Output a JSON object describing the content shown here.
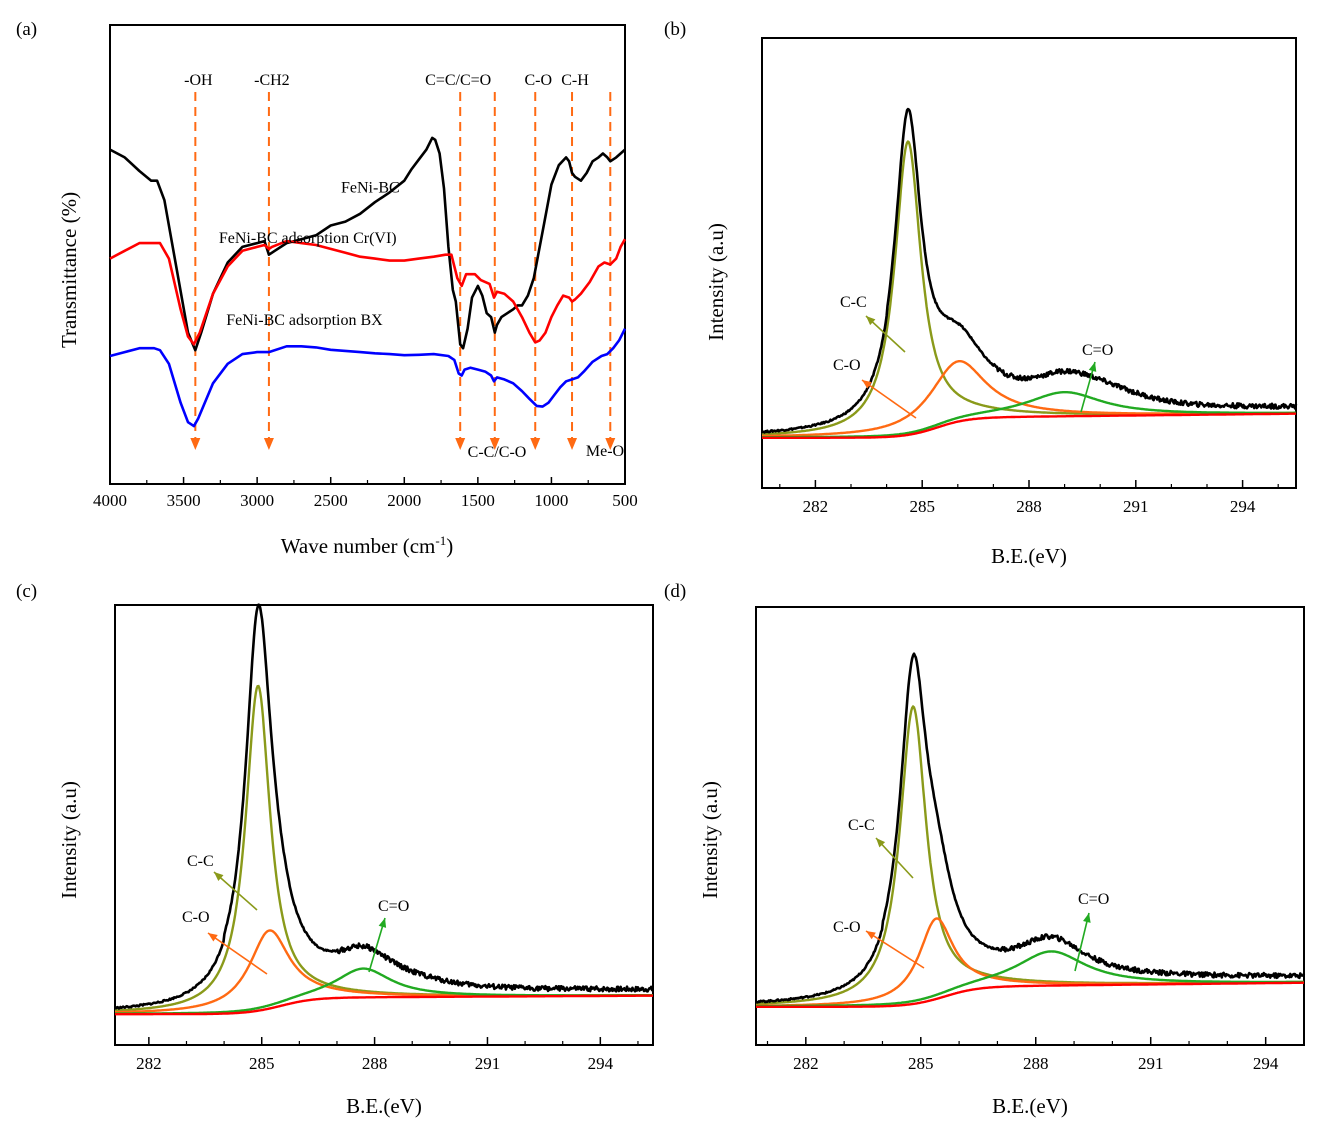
{
  "chart_data": [
    {
      "panel": "(a)",
      "type": "line",
      "xlabel": "Wave number (cm",
      "xlabel_sup": "-1",
      "xlabel_end": ")",
      "ylabel": "Transmittance (%)",
      "xlim": [
        4000,
        500
      ],
      "xticks": [
        4000,
        3500,
        3000,
        2500,
        2000,
        1500,
        1000,
        500
      ],
      "series": [
        {
          "name": "FeNi-BC",
          "color": "#000000",
          "points": [
            [
              4000,
              0.72
            ],
            [
              3900,
              0.7
            ],
            [
              3800,
              0.665
            ],
            [
              3720,
              0.64
            ],
            [
              3680,
              0.64
            ],
            [
              3630,
              0.59
            ],
            [
              3550,
              0.42
            ],
            [
              3470,
              0.25
            ],
            [
              3420,
              0.205
            ],
            [
              3380,
              0.25
            ],
            [
              3300,
              0.35
            ],
            [
              3200,
              0.43
            ],
            [
              3100,
              0.47
            ],
            [
              3000,
              0.48
            ],
            [
              2950,
              0.485
            ],
            [
              2920,
              0.45
            ],
            [
              2880,
              0.46
            ],
            [
              2800,
              0.48
            ],
            [
              2700,
              0.49
            ],
            [
              2600,
              0.5
            ],
            [
              2500,
              0.525
            ],
            [
              2400,
              0.535
            ],
            [
              2300,
              0.555
            ],
            [
              2200,
              0.585
            ],
            [
              2100,
              0.61
            ],
            [
              2000,
              0.64
            ],
            [
              1950,
              0.67
            ],
            [
              1900,
              0.695
            ],
            [
              1850,
              0.72
            ],
            [
              1810,
              0.75
            ],
            [
              1790,
              0.745
            ],
            [
              1760,
              0.71
            ],
            [
              1730,
              0.62
            ],
            [
              1700,
              0.47
            ],
            [
              1670,
              0.36
            ],
            [
              1650,
              0.33
            ],
            [
              1620,
              0.22
            ],
            [
              1600,
              0.21
            ],
            [
              1570,
              0.26
            ],
            [
              1540,
              0.34
            ],
            [
              1500,
              0.37
            ],
            [
              1470,
              0.345
            ],
            [
              1440,
              0.3
            ],
            [
              1410,
              0.29
            ],
            [
              1385,
              0.25
            ],
            [
              1370,
              0.27
            ],
            [
              1340,
              0.29
            ],
            [
              1300,
              0.3
            ],
            [
              1260,
              0.31
            ],
            [
              1230,
              0.32
            ],
            [
              1200,
              0.32
            ],
            [
              1160,
              0.345
            ],
            [
              1120,
              0.39
            ],
            [
              1090,
              0.45
            ],
            [
              1050,
              0.53
            ],
            [
              1000,
              0.63
            ],
            [
              950,
              0.68
            ],
            [
              900,
              0.7
            ],
            [
              880,
              0.69
            ],
            [
              860,
              0.66
            ],
            [
              840,
              0.65
            ],
            [
              800,
              0.64
            ],
            [
              760,
              0.66
            ],
            [
              720,
              0.69
            ],
            [
              680,
              0.7
            ],
            [
              650,
              0.71
            ],
            [
              620,
              0.7
            ],
            [
              600,
              0.69
            ],
            [
              560,
              0.7
            ],
            [
              530,
              0.71
            ],
            [
              500,
              0.72
            ]
          ]
        },
        {
          "name": "FeNi-BC adsorption Cr(VI)",
          "color": "#ff0000",
          "points": [
            [
              4000,
              0.44
            ],
            [
              3900,
              0.46
            ],
            [
              3800,
              0.48
            ],
            [
              3700,
              0.48
            ],
            [
              3660,
              0.48
            ],
            [
              3600,
              0.44
            ],
            [
              3520,
              0.31
            ],
            [
              3470,
              0.24
            ],
            [
              3430,
              0.22
            ],
            [
              3390,
              0.25
            ],
            [
              3300,
              0.35
            ],
            [
              3200,
              0.42
            ],
            [
              3100,
              0.46
            ],
            [
              3000,
              0.47
            ],
            [
              2950,
              0.475
            ],
            [
              2920,
              0.465
            ],
            [
              2900,
              0.47
            ],
            [
              2800,
              0.485
            ],
            [
              2700,
              0.48
            ],
            [
              2600,
              0.475
            ],
            [
              2500,
              0.465
            ],
            [
              2400,
              0.455
            ],
            [
              2300,
              0.445
            ],
            [
              2200,
              0.44
            ],
            [
              2100,
              0.435
            ],
            [
              2000,
              0.435
            ],
            [
              1900,
              0.44
            ],
            [
              1800,
              0.445
            ],
            [
              1720,
              0.45
            ],
            [
              1680,
              0.45
            ],
            [
              1640,
              0.39
            ],
            [
              1610,
              0.37
            ],
            [
              1580,
              0.4
            ],
            [
              1520,
              0.4
            ],
            [
              1480,
              0.385
            ],
            [
              1420,
              0.375
            ],
            [
              1390,
              0.34
            ],
            [
              1370,
              0.355
            ],
            [
              1320,
              0.35
            ],
            [
              1260,
              0.33
            ],
            [
              1200,
              0.29
            ],
            [
              1150,
              0.25
            ],
            [
              1110,
              0.225
            ],
            [
              1080,
              0.23
            ],
            [
              1040,
              0.25
            ],
            [
              1000,
              0.29
            ],
            [
              960,
              0.32
            ],
            [
              920,
              0.345
            ],
            [
              880,
              0.34
            ],
            [
              860,
              0.33
            ],
            [
              840,
              0.335
            ],
            [
              800,
              0.35
            ],
            [
              740,
              0.38
            ],
            [
              680,
              0.42
            ],
            [
              640,
              0.43
            ],
            [
              600,
              0.425
            ],
            [
              560,
              0.44
            ],
            [
              530,
              0.47
            ],
            [
              500,
              0.49
            ]
          ]
        },
        {
          "name": "FeNi-BC adsorption BX",
          "color": "#0000ff",
          "points": [
            [
              4000,
              0.19
            ],
            [
              3900,
              0.2
            ],
            [
              3800,
              0.21
            ],
            [
              3700,
              0.21
            ],
            [
              3660,
              0.205
            ],
            [
              3600,
              0.17
            ],
            [
              3520,
              0.07
            ],
            [
              3470,
              0.02
            ],
            [
              3430,
              0.01
            ],
            [
              3400,
              0.03
            ],
            [
              3300,
              0.12
            ],
            [
              3200,
              0.17
            ],
            [
              3100,
              0.195
            ],
            [
              3000,
              0.2
            ],
            [
              2920,
              0.2
            ],
            [
              2800,
              0.215
            ],
            [
              2700,
              0.215
            ],
            [
              2600,
              0.212
            ],
            [
              2500,
              0.206
            ],
            [
              2400,
              0.203
            ],
            [
              2300,
              0.2
            ],
            [
              2200,
              0.197
            ],
            [
              2100,
              0.195
            ],
            [
              2000,
              0.192
            ],
            [
              1900,
              0.193
            ],
            [
              1800,
              0.195
            ],
            [
              1700,
              0.19
            ],
            [
              1660,
              0.18
            ],
            [
              1630,
              0.145
            ],
            [
              1610,
              0.14
            ],
            [
              1590,
              0.155
            ],
            [
              1550,
              0.16
            ],
            [
              1500,
              0.155
            ],
            [
              1450,
              0.15
            ],
            [
              1410,
              0.14
            ],
            [
              1390,
              0.125
            ],
            [
              1370,
              0.135
            ],
            [
              1320,
              0.13
            ],
            [
              1260,
              0.12
            ],
            [
              1200,
              0.1
            ],
            [
              1150,
              0.08
            ],
            [
              1100,
              0.062
            ],
            [
              1060,
              0.06
            ],
            [
              1020,
              0.07
            ],
            [
              980,
              0.09
            ],
            [
              940,
              0.11
            ],
            [
              900,
              0.125
            ],
            [
              860,
              0.13
            ],
            [
              820,
              0.135
            ],
            [
              780,
              0.15
            ],
            [
              720,
              0.175
            ],
            [
              660,
              0.19
            ],
            [
              620,
              0.195
            ],
            [
              580,
              0.21
            ],
            [
              540,
              0.23
            ],
            [
              500,
              0.26
            ]
          ]
        }
      ],
      "series_labels": [
        {
          "text": "FeNi-BC",
          "x": 2430,
          "y": 0.61
        },
        {
          "text": "FeNi-BC adsorption Cr(VI)",
          "x": 3260,
          "y": 0.48
        },
        {
          "text": "FeNi-BC adsorption BX",
          "x": 3210,
          "y": 0.27
        }
      ],
      "markers": [
        {
          "x": 3420,
          "label": "-OH",
          "label_pos": "top"
        },
        {
          "x": 2920,
          "label": "-CH2",
          "label_pos": "top"
        },
        {
          "x": 1620,
          "label": "C=C/C=O",
          "label_pos": "top"
        },
        {
          "x": 1385,
          "label": "",
          "label_pos": "top"
        },
        {
          "x": 1110,
          "label": "C-O",
          "label_pos": "top"
        },
        {
          "x": 860,
          "label": "C-H",
          "label_pos": "top"
        },
        {
          "x": 600,
          "label": "",
          "label_pos": "top"
        }
      ],
      "bottom_labels": [
        "C-C/C-O",
        "Me-O"
      ],
      "marker_color": "#ff6a13"
    },
    {
      "panel": "(b)",
      "type": "line",
      "xlabel": "B.E.(eV)",
      "ylabel": "Intensity (a.u)",
      "xlim": [
        280.5,
        295.5
      ],
      "xticks": [
        282,
        285,
        288,
        291,
        294
      ],
      "components": [
        {
          "name": "C-C",
          "color": "#8a9a1a",
          "center": 284.6,
          "height": 0.73,
          "width": 0.45
        },
        {
          "name": "C-O",
          "color": "#ff6a13",
          "center": 286.0,
          "height": 0.15,
          "width": 0.95
        },
        {
          "name": "C=O",
          "color": "#22aa22",
          "center": 289.0,
          "height": 0.06,
          "width": 1.3
        }
      ],
      "background": {
        "color": "#ff0000",
        "step_center": 285.4,
        "step_low": 0.005,
        "step_high": 0.055,
        "end": 0.065
      },
      "envelope_color": "#000000",
      "envelope_hump": {
        "center": 290.0,
        "height": 0.025,
        "width": 1.5
      },
      "ylim": [
        -0.12,
        1.0
      ],
      "annotations": [
        {
          "text": "C-C",
          "color": "#8a9a1a"
        },
        {
          "text": "C-O",
          "color": "#ff6a13"
        },
        {
          "text": "C=O",
          "color": "#22aa22"
        }
      ]
    },
    {
      "panel": "(c)",
      "type": "line",
      "xlabel": "B.E.(eV)",
      "ylabel": "Intensity (a.u)",
      "xlim": [
        281.1,
        295.4
      ],
      "xticks": [
        282,
        285,
        288,
        291,
        294
      ],
      "components": [
        {
          "name": "C-C",
          "color": "#8a9a1a",
          "center": 284.9,
          "height": 0.79,
          "width": 0.4
        },
        {
          "name": "C-O",
          "color": "#ff6a13",
          "center": 285.2,
          "height": 0.19,
          "width": 0.65
        },
        {
          "name": "C=O",
          "color": "#22aa22",
          "center": 287.7,
          "height": 0.07,
          "width": 0.9
        }
      ],
      "background": {
        "color": "#ff0000",
        "step_center": 285.5,
        "step_low": 0.005,
        "step_high": 0.045,
        "end": 0.05
      },
      "envelope_color": "#000000",
      "envelope_hump": {
        "center": 288.5,
        "height": 0.015,
        "width": 1.6
      },
      "ylim": [
        -0.07,
        1.0
      ],
      "annotations": [
        {
          "text": "C-C",
          "color": "#8a9a1a"
        },
        {
          "text": "C-O",
          "color": "#ff6a13"
        },
        {
          "text": "C=O",
          "color": "#22aa22"
        }
      ]
    },
    {
      "panel": "(d)",
      "type": "line",
      "xlabel": "B.E.(eV)",
      "ylabel": "Intensity (a.u)",
      "xlim": [
        280.7,
        295.0
      ],
      "xticks": [
        282,
        285,
        288,
        291,
        294
      ],
      "components": [
        {
          "name": "C-C",
          "color": "#8a9a1a",
          "center": 284.8,
          "height": 0.74,
          "width": 0.42
        },
        {
          "name": "C-O",
          "color": "#ff6a13",
          "center": 285.4,
          "height": 0.2,
          "width": 0.55
        },
        {
          "name": "C=O",
          "color": "#22aa22",
          "center": 288.4,
          "height": 0.085,
          "width": 1.1
        }
      ],
      "background": {
        "color": "#ff0000",
        "step_center": 285.6,
        "step_low": 0.005,
        "step_high": 0.055,
        "end": 0.065
      },
      "envelope_color": "#000000",
      "envelope_hump": {
        "center": 288.5,
        "height": 0.005,
        "width": 1.0
      },
      "ylim": [
        -0.09,
        1.0
      ],
      "annotations": [
        {
          "text": "C-C",
          "color": "#8a9a1a"
        },
        {
          "text": "C-O",
          "color": "#ff6a13"
        },
        {
          "text": "C=O",
          "color": "#22aa22"
        }
      ]
    }
  ]
}
